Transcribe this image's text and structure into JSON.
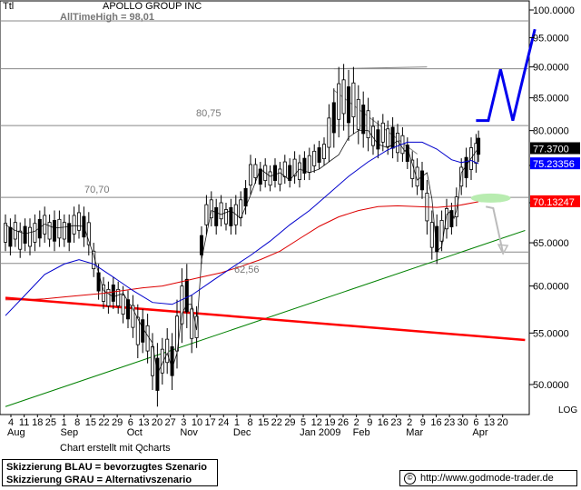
{
  "ticker": "Ttl",
  "company": "APOLLO GROUP INC",
  "credit": "Chart erstellt mit Qcharts",
  "legend": {
    "blue": "Skizzierung BLAU = bevorzugtes Szenario",
    "grey": "Skizzierung GRAU = Alternativszenario"
  },
  "source": {
    "icon": "copyright-icon",
    "text": "http://www.godmode-trader.de"
  },
  "chart_data": {
    "type": "candlestick",
    "scale": "LOG",
    "y_range": [
      47,
      100
    ],
    "y_ticks": [
      "100.0000",
      "95.0000",
      "90.0000",
      "85.0000",
      "80.0000",
      "75.0000",
      "70.0000",
      "65.0000",
      "60.0000",
      "55.0000",
      "50.0000"
    ],
    "y_tick_values": [
      100,
      95,
      90,
      85,
      80,
      75,
      70,
      65,
      60,
      55,
      50
    ],
    "x_day_labels": [
      "4",
      "11",
      "18",
      "25",
      "1",
      "8",
      "15",
      "22",
      "29",
      "6",
      "13",
      "20",
      "27",
      "3",
      "10",
      "17",
      "24",
      "1",
      "8",
      "15",
      "22",
      "29",
      "5",
      "12",
      "19",
      "26",
      "2",
      "9",
      "16",
      "23",
      "2",
      "9",
      "16",
      "23",
      "30",
      "6",
      "13",
      "20"
    ],
    "x_month_labels": [
      {
        "label": "Aug",
        "at": "4"
      },
      {
        "label": "Sep",
        "at": "1"
      },
      {
        "label": "Oct",
        "at": "6"
      },
      {
        "label": "Nov",
        "at": "3"
      },
      {
        "label": "Dec",
        "at": "1"
      },
      {
        "label": "Jan 2009",
        "at": "5"
      },
      {
        "label": "Feb",
        "at": "2"
      },
      {
        "label": "Mar",
        "at": "2"
      },
      {
        "label": "Apr",
        "at": "6"
      }
    ],
    "annotations": [
      {
        "text": "AllTimeHigh  =  98,01",
        "value": 98.01
      },
      {
        "text": "80,75",
        "value": 80.75
      },
      {
        "text": "70,70",
        "value": 70.7
      },
      {
        "text": "62,56",
        "value": 62.56
      }
    ],
    "value_badges": [
      {
        "text": "77.3700",
        "value": 77.37,
        "color": "#000000"
      },
      {
        "text": "75.23356",
        "value": 75.23356,
        "color": "#0000ff"
      },
      {
        "text": "70.13247",
        "value": 70.13247,
        "color": "#ff0000"
      }
    ],
    "close_path": [
      [
        0,
        67.2
      ],
      [
        2,
        66.5
      ],
      [
        4,
        66.1
      ],
      [
        6,
        66.4
      ],
      [
        8,
        67.3
      ],
      [
        10,
        66.8
      ],
      [
        12,
        66.9
      ],
      [
        14,
        67.1
      ],
      [
        16,
        67
      ],
      [
        18,
        63.5
      ],
      [
        20,
        59.5
      ],
      [
        22,
        58.8
      ],
      [
        24,
        59.2
      ],
      [
        26,
        57.5
      ],
      [
        28,
        55.5
      ],
      [
        30,
        54
      ],
      [
        31,
        51
      ],
      [
        32,
        52
      ],
      [
        33,
        53
      ],
      [
        34,
        51.5
      ],
      [
        35,
        53
      ],
      [
        36,
        57
      ],
      [
        37,
        58
      ],
      [
        38,
        58
      ],
      [
        39,
        55.3
      ],
      [
        40,
        63
      ],
      [
        42,
        69
      ],
      [
        44,
        68.5
      ],
      [
        46,
        69
      ],
      [
        48,
        68
      ],
      [
        50,
        71
      ],
      [
        52,
        74.5
      ],
      [
        54,
        73.5
      ],
      [
        56,
        74
      ],
      [
        58,
        73
      ],
      [
        60,
        74.5
      ],
      [
        62,
        74
      ],
      [
        64,
        74.5
      ],
      [
        66,
        75.5
      ],
      [
        68,
        76.5
      ],
      [
        70,
        79
      ],
      [
        72,
        80
      ],
      [
        74,
        80
      ],
      [
        76,
        78
      ],
      [
        78,
        77.5
      ],
      [
        80,
        78.5
      ],
      [
        81.5,
        77
      ],
      [
        82,
        77.5
      ],
      [
        84,
        73
      ],
      [
        86,
        74
      ],
      [
        87,
        70.5
      ],
      [
        88,
        64
      ],
      [
        89,
        64.5
      ],
      [
        90,
        68.5
      ],
      [
        91,
        69
      ],
      [
        91.5,
        68
      ],
      [
        92,
        69
      ],
      [
        92.5,
        71
      ],
      [
        93,
        74
      ],
      [
        94,
        75
      ],
      [
        95,
        76
      ],
      [
        96,
        77
      ],
      [
        96.5,
        77.37
      ]
    ],
    "candle_ranges": [
      [
        0,
        64,
        68.5
      ],
      [
        1,
        63.5,
        68
      ],
      [
        2,
        64.5,
        68.5
      ],
      [
        3,
        63.2,
        67.5
      ],
      [
        4,
        64,
        68
      ],
      [
        5,
        63.5,
        68
      ],
      [
        6,
        64,
        68.5
      ],
      [
        7,
        64.5,
        69
      ],
      [
        8,
        65,
        69.5
      ],
      [
        9,
        64.5,
        68.5
      ],
      [
        10,
        64,
        69
      ],
      [
        11,
        64.5,
        69
      ],
      [
        12,
        64.5,
        68.5
      ],
      [
        13,
        64,
        68.5
      ],
      [
        14,
        65,
        69.5
      ],
      [
        15,
        65.5,
        69.8
      ],
      [
        16,
        64.5,
        69.5
      ],
      [
        17,
        63.5,
        68.8
      ],
      [
        18,
        61,
        65
      ],
      [
        19,
        58.5,
        62.5
      ],
      [
        20,
        57.5,
        61
      ],
      [
        21,
        57,
        60.5
      ],
      [
        22,
        57.5,
        61
      ],
      [
        23,
        57,
        60.5
      ],
      [
        24,
        56,
        60
      ],
      [
        25,
        55.5,
        59.5
      ],
      [
        26,
        54.5,
        59
      ],
      [
        27,
        52.5,
        58
      ],
      [
        28,
        53,
        57.5
      ],
      [
        29,
        52,
        57
      ],
      [
        30,
        49.5,
        55
      ],
      [
        31,
        48,
        54
      ],
      [
        32,
        50,
        54.5
      ],
      [
        33,
        51,
        55.5
      ],
      [
        34,
        49.5,
        55
      ],
      [
        35,
        51.5,
        58.5
      ],
      [
        36,
        54,
        62
      ],
      [
        37,
        55.5,
        62.5
      ],
      [
        38,
        53,
        59
      ],
      [
        39,
        53.5,
        57.8
      ],
      [
        40,
        62.5,
        67
      ],
      [
        41,
        66,
        71
      ],
      [
        42,
        67,
        71.5
      ],
      [
        43,
        66,
        70.5
      ],
      [
        44,
        67,
        71
      ],
      [
        45,
        66.5,
        70
      ],
      [
        46,
        66,
        70.5
      ],
      [
        47,
        66,
        71
      ],
      [
        48,
        67,
        71.5
      ],
      [
        49,
        68.5,
        73
      ],
      [
        50,
        71,
        76.5
      ],
      [
        51,
        72.5,
        76
      ],
      [
        52,
        71.5,
        75.5
      ],
      [
        53,
        72,
        76
      ],
      [
        54,
        71.5,
        75
      ],
      [
        55,
        72,
        76
      ],
      [
        56,
        71.5,
        75.5
      ],
      [
        57,
        72.5,
        76.5
      ],
      [
        58,
        72,
        76
      ],
      [
        59,
        72.5,
        77
      ],
      [
        60,
        72,
        76.5
      ],
      [
        61,
        73,
        77
      ],
      [
        62,
        73,
        77.5
      ],
      [
        63,
        74,
        78
      ],
      [
        64,
        74.5,
        78.5
      ],
      [
        65,
        75,
        79
      ],
      [
        66,
        75.5,
        84
      ],
      [
        67,
        77.5,
        86.5
      ],
      [
        68,
        79,
        90
      ],
      [
        69,
        80,
        90.5
      ],
      [
        70,
        78.5,
        89.5
      ],
      [
        71,
        79.5,
        90
      ],
      [
        72,
        78,
        87
      ],
      [
        73,
        77.5,
        86
      ],
      [
        74,
        77,
        85
      ],
      [
        75,
        76.5,
        82
      ],
      [
        76,
        76,
        81.5
      ],
      [
        77,
        77,
        82.5
      ],
      [
        78,
        76.5,
        81.5
      ],
      [
        79,
        76,
        82
      ],
      [
        80,
        75.5,
        81
      ],
      [
        81,
        75.5,
        80.5
      ],
      [
        82,
        74.5,
        79
      ],
      [
        83,
        72,
        77
      ],
      [
        84,
        71,
        76
      ],
      [
        85,
        70.5,
        75.5
      ],
      [
        86,
        66,
        73
      ],
      [
        87,
        63,
        69
      ],
      [
        88,
        62.5,
        68.5
      ],
      [
        89,
        64,
        69
      ],
      [
        90,
        65.5,
        70.5
      ],
      [
        91,
        66,
        70
      ],
      [
        92,
        67,
        72
      ],
      [
        93,
        71,
        76
      ],
      [
        94,
        72,
        77.5
      ],
      [
        95,
        73,
        79
      ],
      [
        96,
        74,
        79.5
      ],
      [
        96.5,
        75.5,
        80
      ]
    ],
    "sma50": [
      [
        0,
        56.8
      ],
      [
        4,
        59
      ],
      [
        8,
        61.3
      ],
      [
        12,
        62.5
      ],
      [
        15,
        63
      ],
      [
        18,
        62.5
      ],
      [
        22,
        61
      ],
      [
        26,
        59.5
      ],
      [
        30,
        58.2
      ],
      [
        34,
        58
      ],
      [
        38,
        59
      ],
      [
        42,
        60.5
      ],
      [
        46,
        62
      ],
      [
        50,
        63.5
      ],
      [
        54,
        65.2
      ],
      [
        58,
        67.2
      ],
      [
        62,
        69
      ],
      [
        66,
        71.2
      ],
      [
        70,
        73.5
      ],
      [
        74,
        75.5
      ],
      [
        78,
        77.2
      ],
      [
        82,
        78.3
      ],
      [
        85,
        78.3
      ],
      [
        88,
        77.3
      ],
      [
        91,
        75.8
      ],
      [
        93,
        75.4
      ],
      [
        95,
        75.7
      ],
      [
        96.5,
        75.23356
      ]
    ],
    "sma200": [
      [
        0,
        58.5
      ],
      [
        4,
        58.5
      ],
      [
        8,
        58.6
      ],
      [
        12,
        58.8
      ],
      [
        16,
        59
      ],
      [
        20,
        59.2
      ],
      [
        24,
        59.5
      ],
      [
        28,
        59.8
      ],
      [
        32,
        60
      ],
      [
        36,
        60.5
      ],
      [
        40,
        61
      ],
      [
        44,
        61.5
      ],
      [
        48,
        62.2
      ],
      [
        52,
        63
      ],
      [
        56,
        64
      ],
      [
        60,
        65.5
      ],
      [
        64,
        67
      ],
      [
        68,
        68.2
      ],
      [
        72,
        69
      ],
      [
        76,
        69.5
      ],
      [
        80,
        69.6
      ],
      [
        84,
        69.5
      ],
      [
        88,
        69.4
      ],
      [
        92,
        69.6
      ],
      [
        96.5,
        70.13247
      ]
    ],
    "uptrend_green": [
      [
        0,
        48
      ],
      [
        106,
        66.5
      ]
    ],
    "downtrend_red": [
      [
        0,
        58.7
      ],
      [
        106,
        54.3
      ]
    ],
    "wedge_lines": [
      [
        [
          67,
          86.2
        ],
        [
          84,
          76.6
        ]
      ],
      [
        [
          67,
          89.7
        ],
        [
          86,
          90
        ]
      ]
    ],
    "horizontals": [
      98.01,
      89.7,
      80.75,
      70.7,
      63.9,
      62.56
    ],
    "blue_scenario": [
      [
        96,
        81.5
      ],
      [
        98.5,
        81.5
      ],
      [
        101,
        89.6
      ],
      [
        103.5,
        81.5
      ],
      [
        106,
        89.6
      ],
      [
        108,
        96.5
      ]
    ],
    "grey_scenario": [
      [
        98,
        69.5
      ],
      [
        99.5,
        69.3
      ],
      [
        101.5,
        63.8
      ]
    ],
    "grey_zone": {
      "x": 99,
      "value": 70.6
    }
  }
}
